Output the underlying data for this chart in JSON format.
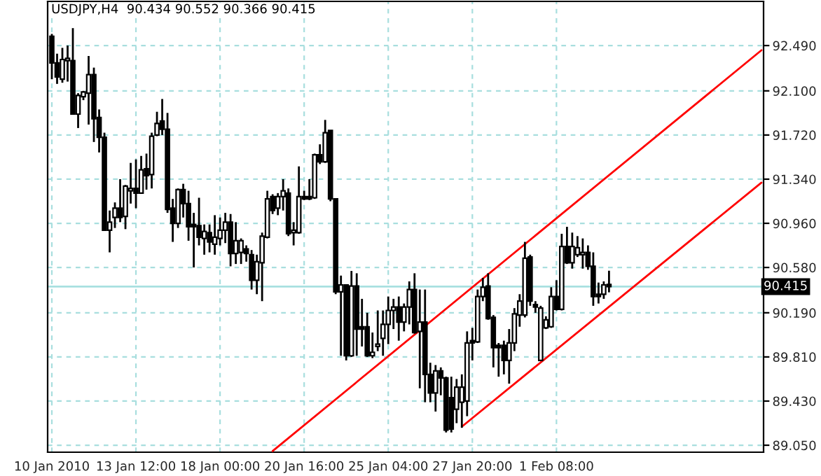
{
  "chart_data": {
    "type": "candlestick",
    "title": "USDJPY,H4  90.434 90.552 90.366 90.415",
    "categories": [
      "10 Jan 2010",
      null,
      null,
      null,
      null,
      null,
      null,
      null,
      null,
      null,
      null,
      null,
      null,
      null,
      null,
      null,
      "13 Jan 12:00",
      null,
      null,
      null,
      null,
      null,
      null,
      null,
      null,
      null,
      null,
      null,
      null,
      null,
      null,
      null,
      "18 Jan 00:00",
      null,
      null,
      null,
      null,
      null,
      null,
      null,
      null,
      null,
      null,
      null,
      null,
      null,
      null,
      null,
      "20 Jan 16:00",
      null,
      null,
      null,
      null,
      null,
      null,
      null,
      null,
      null,
      null,
      null,
      null,
      null,
      null,
      null,
      "25 Jan 04:00",
      null,
      null,
      null,
      null,
      null,
      null,
      null,
      null,
      null,
      null,
      null,
      null,
      null,
      null,
      null,
      "27 Jan 20:00",
      null,
      null,
      null,
      null,
      null,
      null,
      null,
      null,
      null,
      null,
      null,
      null,
      null,
      null,
      null,
      "1 Feb 08:00",
      null,
      null,
      null,
      null,
      null,
      null,
      null,
      null,
      null,
      null,
      null,
      null,
      null,
      null,
      null,
      null,
      null,
      null,
      null,
      null,
      null,
      null,
      null,
      null,
      null,
      null,
      null,
      null,
      null,
      null,
      null,
      null,
      null,
      null,
      null,
      null,
      null,
      null,
      null
    ],
    "ohlc": [
      [
        92.57,
        92.59,
        92.2,
        92.34
      ],
      [
        92.34,
        92.42,
        92.16,
        92.22
      ],
      [
        92.2,
        92.47,
        92.17,
        92.37
      ],
      [
        92.36,
        92.49,
        92.18,
        92.38
      ],
      [
        92.36,
        92.64,
        91.9,
        91.9
      ],
      [
        91.9,
        92.08,
        91.78,
        92.06
      ],
      [
        92.05,
        92.1,
        92.02,
        92.09
      ],
      [
        92.08,
        92.4,
        91.81,
        92.24
      ],
      [
        92.24,
        92.3,
        91.66,
        91.86
      ],
      [
        91.87,
        91.94,
        91.57,
        91.7
      ],
      [
        91.7,
        91.74,
        90.9,
        90.9
      ],
      [
        90.9,
        91.07,
        90.71,
        90.97
      ],
      [
        91.01,
        91.14,
        90.92,
        91.09
      ],
      [
        91.09,
        91.34,
        90.97,
        91.01
      ],
      [
        91.02,
        91.29,
        90.91,
        91.28
      ],
      [
        91.24,
        91.48,
        91.13,
        91.26
      ],
      [
        91.26,
        91.51,
        91.09,
        91.22
      ],
      [
        91.22,
        91.54,
        91.22,
        91.42
      ],
      [
        91.43,
        91.56,
        91.25,
        91.37
      ],
      [
        91.38,
        91.74,
        91.26,
        91.71
      ],
      [
        91.72,
        91.92,
        91.71,
        91.82
      ],
      [
        91.84,
        92.03,
        91.72,
        91.77
      ],
      [
        91.77,
        91.91,
        91.05,
        91.08
      ],
      [
        91.09,
        91.17,
        90.8,
        90.96
      ],
      [
        90.96,
        91.26,
        90.92,
        91.25
      ],
      [
        91.25,
        91.3,
        91.01,
        91.13
      ],
      [
        91.13,
        91.24,
        90.81,
        90.93
      ],
      [
        90.95,
        91.05,
        90.58,
        90.93
      ],
      [
        90.94,
        91.18,
        90.77,
        90.84
      ],
      [
        90.83,
        90.95,
        90.69,
        90.89
      ],
      [
        90.88,
        90.95,
        90.71,
        90.8
      ],
      [
        90.78,
        91.03,
        90.69,
        90.84
      ],
      [
        90.83,
        91.01,
        90.77,
        90.9
      ],
      [
        90.9,
        91.05,
        90.79,
        90.97
      ],
      [
        90.97,
        91.04,
        90.59,
        90.7
      ],
      [
        90.7,
        90.97,
        90.61,
        90.81
      ],
      [
        90.71,
        90.83,
        90.61,
        90.81
      ],
      [
        90.74,
        90.77,
        90.63,
        90.7
      ],
      [
        90.69,
        90.73,
        90.39,
        90.47
      ],
      [
        90.47,
        90.69,
        90.35,
        90.63
      ],
      [
        90.62,
        90.88,
        90.29,
        90.85
      ],
      [
        90.84,
        91.24,
        90.83,
        91.17
      ],
      [
        91.19,
        91.21,
        91.04,
        91.07
      ],
      [
        91.09,
        91.22,
        91.03,
        91.19
      ],
      [
        91.19,
        91.34,
        91.07,
        91.24
      ],
      [
        91.22,
        91.26,
        90.85,
        90.87
      ],
      [
        90.88,
        90.97,
        90.77,
        90.9
      ],
      [
        90.88,
        91.45,
        90.87,
        91.19
      ],
      [
        91.19,
        91.24,
        91.16,
        91.17
      ],
      [
        91.19,
        91.34,
        91.16,
        91.17
      ],
      [
        91.18,
        91.56,
        91.17,
        91.55
      ],
      [
        91.55,
        91.64,
        91.47,
        91.49
      ],
      [
        91.49,
        91.85,
        91.48,
        91.74
      ],
      [
        91.76,
        91.76,
        91.15,
        91.17
      ],
      [
        91.17,
        91.17,
        90.35,
        90.37
      ],
      [
        90.37,
        90.51,
        89.82,
        90.43
      ],
      [
        90.43,
        90.43,
        89.78,
        89.82
      ],
      [
        89.82,
        90.55,
        89.81,
        90.42
      ],
      [
        90.42,
        90.53,
        89.82,
        90.05
      ],
      [
        90.07,
        90.31,
        89.9,
        90.05
      ],
      [
        90.07,
        90.19,
        89.81,
        89.82
      ],
      [
        89.82,
        90.02,
        89.8,
        89.85
      ],
      [
        89.9,
        90.21,
        89.86,
        89.92
      ],
      [
        89.97,
        90.21,
        89.82,
        90.09
      ],
      [
        90.09,
        90.33,
        89.92,
        90.21
      ],
      [
        90.21,
        90.31,
        90.05,
        90.24
      ],
      [
        90.24,
        90.33,
        89.95,
        90.11
      ],
      [
        90.11,
        90.27,
        90.03,
        90.24
      ],
      [
        90.24,
        90.46,
        90.09,
        90.39
      ],
      [
        90.39,
        90.53,
        90.01,
        90.02
      ],
      [
        90.03,
        90.39,
        89.54,
        90.11
      ],
      [
        90.11,
        90.39,
        89.42,
        89.66
      ],
      [
        89.66,
        89.76,
        89.42,
        89.5
      ],
      [
        89.5,
        89.74,
        89.34,
        89.69
      ],
      [
        89.69,
        89.72,
        89.48,
        89.63
      ],
      [
        89.63,
        89.64,
        89.16,
        89.18
      ],
      [
        89.46,
        89.64,
        89.16,
        89.19
      ],
      [
        89.36,
        89.62,
        89.24,
        89.55
      ],
      [
        89.42,
        89.66,
        89.2,
        89.55
      ],
      [
        89.43,
        90.03,
        89.3,
        89.93
      ],
      [
        89.95,
        90.06,
        89.78,
        89.93
      ],
      [
        89.94,
        90.39,
        89.93,
        90.33
      ],
      [
        90.33,
        90.49,
        90.29,
        90.41
      ],
      [
        90.42,
        90.53,
        90.13,
        90.14
      ],
      [
        90.15,
        90.17,
        89.72,
        89.89
      ],
      [
        89.91,
        89.93,
        89.64,
        89.89
      ],
      [
        89.91,
        89.95,
        89.66,
        89.78
      ],
      [
        89.78,
        90.05,
        89.58,
        89.93
      ],
      [
        89.93,
        90.23,
        89.86,
        90.18
      ],
      [
        90.17,
        90.35,
        90.07,
        90.29
      ],
      [
        90.17,
        90.8,
        90.15,
        90.66
      ],
      [
        90.67,
        90.69,
        90.25,
        90.29
      ],
      [
        90.26,
        90.29,
        90.19,
        90.24
      ],
      [
        89.78,
        90.25,
        89.78,
        90.23
      ],
      [
        90.06,
        90.16,
        90.05,
        90.13
      ],
      [
        90.07,
        90.41,
        90.06,
        90.33
      ],
      [
        90.33,
        90.47,
        90.21,
        90.22
      ],
      [
        90.22,
        90.87,
        90.21,
        90.76
      ],
      [
        90.76,
        90.93,
        90.61,
        90.62
      ],
      [
        90.62,
        90.88,
        90.57,
        90.76
      ],
      [
        90.69,
        90.85,
        90.67,
        90.75
      ],
      [
        90.69,
        90.83,
        90.57,
        90.71
      ],
      [
        90.71,
        90.77,
        90.56,
        90.59
      ],
      [
        90.59,
        90.71,
        90.25,
        90.33
      ],
      [
        90.35,
        90.45,
        90.27,
        90.33
      ],
      [
        90.35,
        90.46,
        90.31,
        90.43
      ],
      [
        90.434,
        90.552,
        90.366,
        90.415
      ],
      null,
      null,
      null,
      null,
      null,
      null,
      null,
      null,
      null,
      null,
      null,
      null,
      null,
      null,
      null,
      null,
      null,
      null,
      null,
      null,
      null,
      null,
      null,
      null,
      null,
      null,
      null,
      null,
      null
    ],
    "series": [
      {
        "type": "line",
        "color": "#ff0000",
        "values": [
          null,
          null,
          null,
          null,
          null,
          null,
          null,
          null,
          null,
          null,
          null,
          null,
          null,
          null,
          null,
          null,
          null,
          null,
          null,
          null,
          null,
          null,
          null,
          null,
          null,
          null,
          null,
          null,
          null,
          null,
          null,
          null,
          null,
          null,
          null,
          null,
          null,
          null,
          null,
          null,
          null,
          null,
          89.0,
          null,
          null,
          null,
          null,
          null,
          null,
          null,
          null,
          null,
          null,
          null,
          null,
          null,
          null,
          null,
          null,
          null,
          null,
          null,
          null,
          null,
          null,
          null,
          null,
          null,
          null,
          null,
          null,
          null,
          null,
          null,
          null,
          null,
          null,
          null,
          null,
          null,
          null,
          null,
          null,
          null,
          null,
          null,
          null,
          null,
          null,
          null,
          null,
          null,
          null,
          null,
          null,
          null,
          null,
          null,
          null,
          null,
          null,
          null,
          null,
          null,
          null,
          null,
          null,
          null,
          null,
          null,
          null,
          null,
          null,
          null,
          null,
          null,
          null,
          null,
          null,
          null,
          null,
          null,
          null,
          null,
          null,
          null,
          null,
          null,
          null,
          null,
          null,
          null,
          null,
          null,
          null,
          92.45
        ]
      },
      {
        "type": "line",
        "color": "#ff0000",
        "values": [
          null,
          null,
          null,
          null,
          null,
          null,
          null,
          null,
          null,
          null,
          null,
          null,
          null,
          null,
          null,
          null,
          null,
          null,
          null,
          null,
          null,
          null,
          null,
          null,
          null,
          null,
          null,
          null,
          null,
          null,
          null,
          null,
          null,
          null,
          null,
          null,
          null,
          null,
          null,
          null,
          null,
          null,
          null,
          null,
          null,
          null,
          null,
          null,
          null,
          null,
          null,
          null,
          null,
          null,
          null,
          null,
          null,
          null,
          null,
          null,
          null,
          null,
          null,
          null,
          null,
          null,
          null,
          null,
          null,
          null,
          null,
          null,
          null,
          null,
          null,
          null,
          null,
          null,
          89.21,
          null,
          null,
          null,
          null,
          null,
          null,
          null,
          null,
          null,
          null,
          null,
          null,
          null,
          null,
          null,
          null,
          null,
          null,
          null,
          null,
          null,
          null,
          null,
          null,
          null,
          null,
          null,
          null,
          null,
          null,
          null,
          null,
          null,
          null,
          null,
          null,
          null,
          null,
          null,
          null,
          null,
          null,
          null,
          null,
          null,
          null,
          null,
          null,
          null,
          null,
          null,
          null,
          null,
          null,
          null,
          null,
          91.31
        ]
      }
    ],
    "ylim": [
      88.99,
      92.87
    ],
    "yticks": [
      {
        "value": 89.05,
        "label": "89.050"
      },
      {
        "value": 89.43,
        "label": "89.430"
      },
      {
        "value": 89.81,
        "label": "89.810"
      },
      {
        "value": 90.19,
        "label": "90.190"
      },
      {
        "value": 90.58,
        "label": "90.580"
      },
      {
        "value": 90.96,
        "label": "90.960"
      },
      {
        "value": 91.34,
        "label": "91.340"
      },
      {
        "value": 91.72,
        "label": "91.720"
      },
      {
        "value": 92.1,
        "label": "92.100"
      },
      {
        "value": 92.49,
        "label": "92.490"
      }
    ],
    "grid": true,
    "ref_lines": [
      {
        "axis": "y",
        "value": 90.415,
        "label": "90.415",
        "color": "#a8e0e0",
        "line_style": "solid"
      }
    ]
  }
}
